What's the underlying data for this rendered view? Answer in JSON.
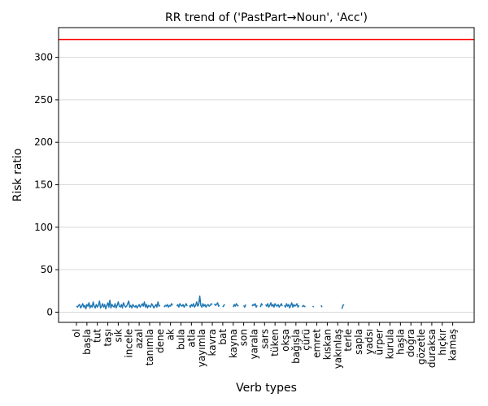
{
  "chart_data": {
    "type": "line",
    "title": "RR trend of ('PastPart→Noun', 'Acc')",
    "xlabel": "Verb types",
    "ylabel": "Risk ratio",
    "ylim": [
      -12,
      335
    ],
    "yticks": [
      0,
      50,
      100,
      150,
      200,
      250,
      300
    ],
    "grid": "y",
    "x_tick_labels": [
      "ol",
      "başla",
      "tut",
      "taşı",
      "sık",
      "incele",
      "azal",
      "tanımla",
      "dene",
      "ak",
      "bula",
      "atla",
      "yayımla",
      "kavra",
      "bat",
      "kayna",
      "son",
      "yarala",
      "sars",
      "tüken",
      "okşa",
      "bağışla",
      "çürü",
      "emret",
      "kıskan",
      "yakınlaş",
      "terle",
      "sapla",
      "yadsı",
      "ürper",
      "kurula",
      "haşla",
      "doğra",
      "gözetle",
      "duraksa",
      "hıçkır",
      "kamaş"
    ],
    "reference_line": {
      "y": 321,
      "color": "#ff0000"
    },
    "series": [
      {
        "color": "#1f77b4",
        "segments": [
          {
            "x": [
              0,
              0.1,
              0.2,
              0.3,
              0.4,
              0.5,
              0.6,
              0.7,
              0.8,
              0.9,
              1.0,
              1.1,
              1.2,
              1.3,
              1.4,
              1.5,
              1.6,
              1.7,
              1.8,
              1.9,
              2.0,
              2.1,
              2.2,
              2.3,
              2.4,
              2.5,
              2.6,
              2.7,
              2.8,
              2.9,
              3.0,
              3.1,
              3.2,
              3.3,
              3.4,
              3.5,
              3.6,
              3.7,
              3.8,
              3.9,
              4.0,
              4.1,
              4.2,
              4.3,
              4.4,
              4.5,
              4.6,
              4.7,
              4.8,
              4.9,
              5.0,
              5.1,
              5.2,
              5.3,
              5.4,
              5.5,
              5.6,
              5.7,
              5.8,
              5.9,
              6.0,
              6.1,
              6.2,
              6.3,
              6.4,
              6.5,
              6.6,
              6.7,
              6.8,
              6.9,
              7.0,
              7.1,
              7.2,
              7.3,
              7.4,
              7.5,
              7.6,
              7.7,
              7.8,
              7.9,
              8.0
            ],
            "y": [
              7,
              6,
              8,
              9,
              5,
              7,
              10,
              6,
              8,
              4,
              9,
              7,
              11,
              5,
              8,
              6,
              12,
              7,
              5,
              9,
              6,
              8,
              13,
              5,
              7,
              10,
              6,
              9,
              4,
              8,
              11,
              6,
              14,
              5,
              9,
              7,
              6,
              10,
              5,
              8,
              12,
              7,
              6,
              9,
              5,
              11,
              8,
              6,
              7,
              10,
              13,
              6,
              8,
              5,
              9,
              7,
              6,
              8,
              5,
              7,
              9,
              6,
              8,
              10,
              7,
              12,
              6,
              9,
              5,
              8,
              7,
              6,
              10,
              8,
              5,
              7,
              9,
              6,
              12,
              7,
              8
            ]
          },
          {
            "x": [
              8.4,
              8.5,
              8.6,
              8.7,
              8.8,
              8.9,
              9.0,
              9.1,
              9.2
            ],
            "y": [
              6,
              8,
              7,
              9,
              6,
              8,
              7,
              10,
              8
            ]
          },
          {
            "x": [
              9.6,
              9.7,
              9.8,
              9.9,
              10.0,
              10.1,
              10.2,
              10.3,
              10.4,
              10.5,
              10.6
            ],
            "y": [
              7,
              9,
              6,
              10,
              8,
              7,
              9,
              6,
              8,
              10,
              7
            ]
          },
          {
            "x": [
              10.8,
              10.9,
              11.0,
              11.1,
              11.2,
              11.3,
              11.4,
              11.5,
              11.6,
              11.7,
              11.8,
              11.9,
              12.0,
              12.1,
              12.2,
              12.3,
              12.4,
              12.5,
              12.6,
              12.7,
              12.8,
              12.9,
              13.0
            ],
            "y": [
              8,
              6,
              9,
              7,
              10,
              6,
              8,
              12,
              7,
              9,
              19,
              8,
              6,
              10,
              7,
              9,
              6,
              8,
              9,
              7,
              8,
              10,
              9
            ]
          },
          {
            "x": [
              13.2,
              13.3,
              13.4,
              13.5,
              13.6,
              13.7
            ],
            "y": [
              10,
              8,
              9,
              11,
              7,
              8
            ]
          },
          {
            "x": [
              14.0,
              14.1,
              14.2
            ],
            "y": [
              6,
              8,
              9
            ]
          },
          {
            "x": [
              15.0,
              15.1,
              15.2,
              15.3,
              15.4,
              15.5
            ],
            "y": [
              6,
              9,
              7,
              10,
              8,
              7
            ]
          },
          {
            "x": [
              16.0,
              16.1,
              16.2
            ],
            "y": [
              8,
              6,
              9
            ]
          },
          {
            "x": [
              16.8,
              16.9,
              17.0,
              17.1,
              17.2,
              17.3
            ],
            "y": [
              7,
              9,
              8,
              10,
              6,
              8
            ]
          },
          {
            "x": [
              17.6,
              17.7,
              17.8
            ],
            "y": [
              6,
              10,
              8
            ]
          },
          {
            "x": [
              18.1,
              18.2,
              18.3,
              18.4,
              18.5,
              18.6,
              18.7,
              18.8,
              18.9,
              19.0,
              19.1,
              19.2,
              19.3,
              19.4,
              19.5,
              19.6,
              19.7
            ],
            "y": [
              9,
              7,
              10,
              6,
              8,
              11,
              7,
              9,
              6,
              10,
              8,
              7,
              9,
              6,
              8,
              10,
              7
            ]
          },
          {
            "x": [
              19.9,
              20.0,
              20.1,
              20.2,
              20.3,
              20.4,
              20.5,
              20.6,
              20.7,
              20.8,
              20.9,
              21.0,
              21.1,
              21.2,
              21.3
            ],
            "y": [
              8,
              6,
              10,
              7,
              9,
              5,
              8,
              11,
              6,
              9,
              7,
              8,
              10,
              6,
              8
            ]
          },
          {
            "x": [
              21.6,
              21.7,
              21.8,
              21.9
            ],
            "y": [
              6,
              8,
              7,
              6
            ]
          },
          {
            "x": [
              22.6,
              22.7
            ],
            "y": [
              7,
              6
            ]
          },
          {
            "x": [
              23.4,
              23.5
            ],
            "y": [
              8,
              6
            ]
          },
          {
            "x": [
              25.4,
              25.5,
              25.6
            ],
            "y": [
              4,
              8,
              9
            ]
          }
        ]
      }
    ]
  }
}
